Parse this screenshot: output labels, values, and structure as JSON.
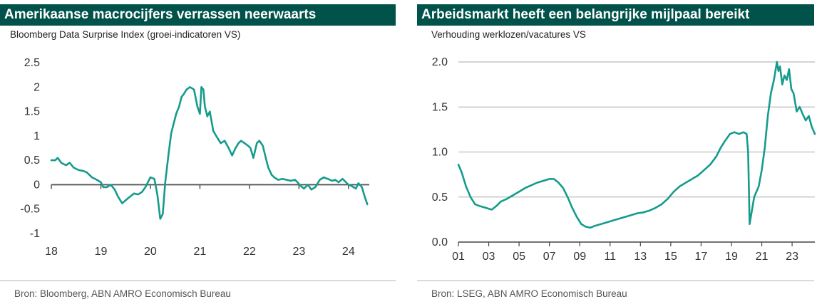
{
  "chart_data": [
    {
      "type": "line",
      "title": "Amerikaanse macrocijfers verrassen neerwaarts",
      "subtitle": "Bloomberg Data Surprise Index (groei-indicatoren VS)",
      "source": "Bron: Bloomberg, ABN AMRO Economisch Bureau",
      "xlabel": "",
      "ylabel": "",
      "xlim": [
        2018.0,
        2024.42
      ],
      "ylim": [
        -1,
        2.5
      ],
      "x_ticks": [
        2018,
        2019,
        2020,
        2021,
        2022,
        2023,
        2024
      ],
      "x_tick_labels": [
        "18",
        "19",
        "20",
        "21",
        "22",
        "23",
        "24"
      ],
      "y_ticks": [
        -1,
        -0.5,
        0,
        0.5,
        1,
        1.5,
        2,
        2.5
      ],
      "y_tick_labels": [
        "-1",
        "-0.5",
        "0",
        "0.5",
        "1",
        "1.5",
        "2",
        "2.5"
      ],
      "grid": false,
      "zero_line": true,
      "series": [
        {
          "name": "",
          "color": "#159b8d",
          "x": [
            2018.0,
            2018.08,
            2018.13,
            2018.2,
            2018.25,
            2018.3,
            2018.37,
            2018.45,
            2018.55,
            2018.65,
            2018.72,
            2018.82,
            2018.92,
            2019.0,
            2019.05,
            2019.12,
            2019.2,
            2019.28,
            2019.35,
            2019.43,
            2019.5,
            2019.58,
            2019.67,
            2019.75,
            2019.83,
            2019.9,
            2020.0,
            2020.08,
            2020.14,
            2020.2,
            2020.25,
            2020.3,
            2020.37,
            2020.42,
            2020.47,
            2020.52,
            2020.58,
            2020.63,
            2020.67,
            2020.73,
            2020.8,
            2020.88,
            2020.95,
            2021.0,
            2021.03,
            2021.07,
            2021.1,
            2021.15,
            2021.2,
            2021.27,
            2021.33,
            2021.42,
            2021.5,
            2021.58,
            2021.65,
            2021.72,
            2021.78,
            2021.83,
            2021.9,
            2021.97,
            2022.02,
            2022.08,
            2022.15,
            2022.2,
            2022.27,
            2022.33,
            2022.38,
            2022.45,
            2022.5,
            2022.58,
            2022.67,
            2022.75,
            2022.83,
            2022.92,
            2022.97,
            2023.03,
            2023.1,
            2023.18,
            2023.25,
            2023.33,
            2023.42,
            2023.5,
            2023.58,
            2023.67,
            2023.73,
            2023.8,
            2023.88,
            2023.95,
            2024.0,
            2024.05,
            2024.1,
            2024.15,
            2024.2,
            2024.27,
            2024.33,
            2024.38
          ],
          "y": [
            0.5,
            0.5,
            0.55,
            0.45,
            0.42,
            0.4,
            0.45,
            0.35,
            0.3,
            0.28,
            0.25,
            0.15,
            0.1,
            0.05,
            -0.05,
            -0.05,
            0.0,
            -0.1,
            -0.25,
            -0.38,
            -0.32,
            -0.25,
            -0.18,
            -0.2,
            -0.15,
            -0.05,
            0.15,
            0.12,
            -0.2,
            -0.7,
            -0.6,
            0.05,
            0.65,
            1.05,
            1.25,
            1.45,
            1.6,
            1.8,
            1.85,
            1.95,
            2.0,
            1.95,
            1.6,
            1.45,
            2.0,
            1.95,
            1.6,
            1.4,
            1.5,
            1.1,
            1.0,
            0.85,
            0.9,
            0.75,
            0.6,
            0.75,
            0.85,
            0.9,
            0.85,
            0.8,
            0.75,
            0.55,
            0.85,
            0.9,
            0.8,
            0.55,
            0.35,
            0.2,
            0.15,
            0.1,
            0.12,
            0.1,
            0.08,
            0.1,
            0.05,
            -0.02,
            -0.08,
            0.0,
            -0.1,
            -0.05,
            0.1,
            0.15,
            0.12,
            0.08,
            0.1,
            0.05,
            0.12,
            0.05,
            0.0,
            -0.02,
            -0.05,
            -0.08,
            0.03,
            -0.05,
            -0.25,
            -0.4
          ]
        }
      ]
    },
    {
      "type": "line",
      "title": "Arbeidsmarkt heeft een belangrijke mijlpaal bereikt",
      "subtitle": "Verhouding werklozen/vacatures VS",
      "source": "Bron: LSEG, ABN AMRO Economisch Bureau",
      "xlabel": "",
      "ylabel": "",
      "xlim": [
        2001.0,
        2024.5
      ],
      "ylim": [
        0.0,
        2.0
      ],
      "x_ticks": [
        2001,
        2003,
        2005,
        2007,
        2009,
        2011,
        2013,
        2015,
        2017,
        2019,
        2021,
        2023
      ],
      "x_tick_labels": [
        "01",
        "03",
        "05",
        "07",
        "09",
        "11",
        "13",
        "15",
        "17",
        "19",
        "21",
        "23"
      ],
      "y_ticks": [
        0.0,
        0.5,
        1.0,
        1.5,
        2.0
      ],
      "y_tick_labels": [
        "0.0",
        "0.5",
        "1.0",
        "1.5",
        "2.0"
      ],
      "grid": true,
      "series": [
        {
          "name": "",
          "color": "#159b8d",
          "x": [
            2001.0,
            2001.2,
            2001.5,
            2001.8,
            2002.1,
            2002.4,
            2002.8,
            2003.2,
            2003.5,
            2003.8,
            2004.2,
            2004.6,
            2005.0,
            2005.4,
            2005.8,
            2006.2,
            2006.6,
            2007.0,
            2007.3,
            2007.6,
            2007.9,
            2008.2,
            2008.5,
            2008.8,
            2009.1,
            2009.4,
            2009.7,
            2010.0,
            2010.4,
            2010.8,
            2011.2,
            2011.6,
            2012.0,
            2012.4,
            2012.8,
            2013.2,
            2013.6,
            2014.0,
            2014.4,
            2014.8,
            2015.2,
            2015.6,
            2016.0,
            2016.4,
            2016.8,
            2017.2,
            2017.6,
            2018.0,
            2018.3,
            2018.6,
            2018.9,
            2019.2,
            2019.5,
            2019.8,
            2020.0,
            2020.1,
            2020.2,
            2020.3,
            2020.5,
            2020.8,
            2021.0,
            2021.2,
            2021.4,
            2021.6,
            2021.8,
            2022.0,
            2022.1,
            2022.2,
            2022.35,
            2022.5,
            2022.65,
            2022.8,
            2022.95,
            2023.1,
            2023.3,
            2023.5,
            2023.7,
            2023.9,
            2024.1,
            2024.3,
            2024.5
          ],
          "y": [
            0.86,
            0.78,
            0.62,
            0.5,
            0.42,
            0.4,
            0.38,
            0.36,
            0.4,
            0.45,
            0.48,
            0.52,
            0.56,
            0.6,
            0.63,
            0.66,
            0.68,
            0.7,
            0.7,
            0.66,
            0.6,
            0.5,
            0.38,
            0.28,
            0.2,
            0.17,
            0.16,
            0.18,
            0.2,
            0.22,
            0.24,
            0.26,
            0.28,
            0.3,
            0.32,
            0.33,
            0.35,
            0.38,
            0.42,
            0.48,
            0.56,
            0.62,
            0.66,
            0.7,
            0.74,
            0.8,
            0.86,
            0.95,
            1.05,
            1.13,
            1.2,
            1.22,
            1.2,
            1.22,
            1.2,
            1.0,
            0.2,
            0.3,
            0.5,
            0.62,
            0.8,
            1.05,
            1.4,
            1.65,
            1.8,
            2.0,
            1.9,
            1.95,
            1.75,
            1.85,
            1.8,
            1.92,
            1.7,
            1.65,
            1.45,
            1.5,
            1.42,
            1.35,
            1.4,
            1.28,
            1.2
          ]
        }
      ]
    }
  ]
}
